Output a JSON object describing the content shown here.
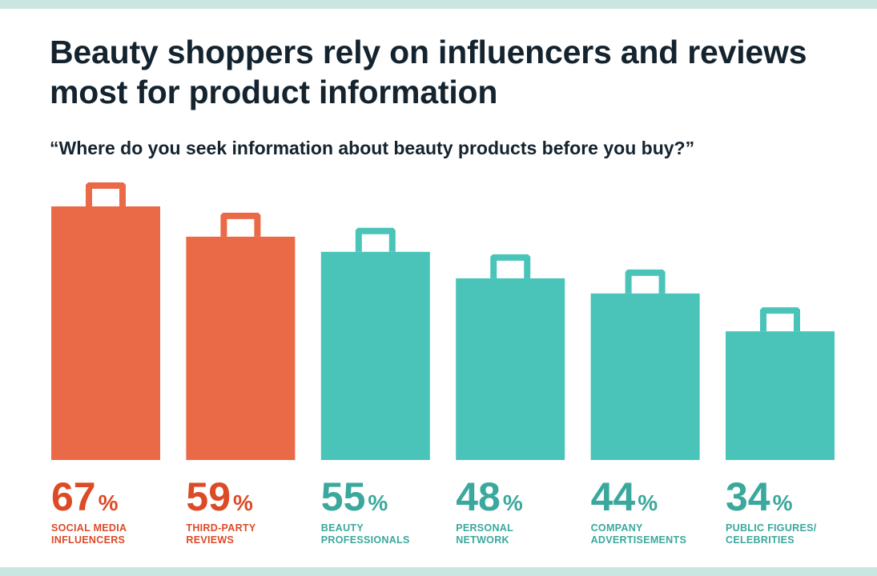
{
  "title": "Beauty shoppers rely on influencers and reviews most for product information",
  "subtitle": "“Where do you seek information about beauty products before you buy?”",
  "colors": {
    "highlight": "#ea6a48",
    "highlight_text": "#dc4a26",
    "base": "#4ac4b9",
    "base_text": "#3aa89c",
    "band": "#c9e6e1",
    "title": "#14232e"
  },
  "chart_data": {
    "type": "bar",
    "unit": "%",
    "categories": [
      [
        "SOCIAL MEDIA",
        "INFLUENCERS"
      ],
      [
        "THIRD-PARTY",
        "REVIEWS"
      ],
      [
        "BEAUTY",
        "PROFESSIONALS"
      ],
      [
        "PERSONAL",
        "NETWORK"
      ],
      [
        "COMPANY",
        "ADVERTISEMENTS"
      ],
      [
        "PUBLIC FIGURES/",
        "CELEBRITIES"
      ]
    ],
    "values": [
      67,
      59,
      55,
      48,
      44,
      34
    ],
    "highlighted": [
      true,
      true,
      false,
      false,
      false,
      false
    ],
    "bar_shape": "shopping-bag",
    "ylim": [
      0,
      67
    ],
    "grid": false
  }
}
